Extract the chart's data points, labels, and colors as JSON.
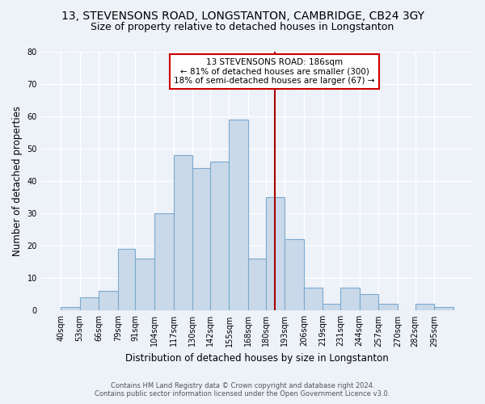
{
  "title1": "13, STEVENSONS ROAD, LONGSTANTON, CAMBRIDGE, CB24 3GY",
  "title2": "Size of property relative to detached houses in Longstanton",
  "xlabel": "Distribution of detached houses by size in Longstanton",
  "ylabel": "Number of detached properties",
  "bin_labels": [
    "40sqm",
    "53sqm",
    "66sqm",
    "79sqm",
    "91sqm",
    "104sqm",
    "117sqm",
    "130sqm",
    "142sqm",
    "155sqm",
    "168sqm",
    "180sqm",
    "193sqm",
    "206sqm",
    "219sqm",
    "231sqm",
    "244sqm",
    "257sqm",
    "270sqm",
    "282sqm",
    "295sqm"
  ],
  "bin_edges": [
    40,
    53,
    66,
    79,
    91,
    104,
    117,
    130,
    142,
    155,
    168,
    180,
    193,
    206,
    219,
    231,
    244,
    257,
    270,
    282,
    295
  ],
  "bar_heights": [
    1,
    4,
    6,
    19,
    16,
    30,
    48,
    44,
    46,
    59,
    16,
    35,
    22,
    7,
    2,
    7,
    5,
    2,
    0,
    2,
    1
  ],
  "bar_color": "#c9d9ea",
  "bar_edge_color": "#7aaace",
  "bg_color": "#edf1f8",
  "grid_color": "#ffffff",
  "vline_x": 186,
  "vline_color": "#aa0000",
  "annotation_box_text": "13 STEVENSONS ROAD: 186sqm\n← 81% of detached houses are smaller (300)\n18% of semi-detached houses are larger (67) →",
  "annotation_box_color": "#cc0000",
  "annotation_box_bg": "#ffffff",
  "footer": "Contains HM Land Registry data © Crown copyright and database right 2024.\nContains public sector information licensed under the Open Government Licence v3.0.",
  "ylim": [
    0,
    80
  ],
  "yticks": [
    0,
    10,
    20,
    30,
    40,
    50,
    60,
    70,
    80
  ],
  "title1_fontsize": 10,
  "title2_fontsize": 9,
  "xlabel_fontsize": 8.5,
  "ylabel_fontsize": 8.5,
  "tick_fontsize": 7,
  "footer_fontsize": 6,
  "annotation_fontsize": 7.5
}
